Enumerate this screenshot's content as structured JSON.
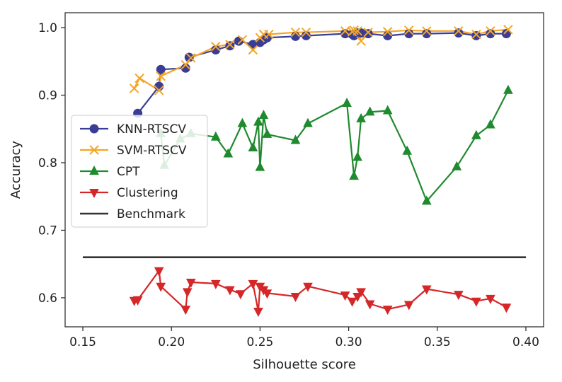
{
  "chart_data": {
    "type": "line",
    "title": "",
    "xlabel": "Silhouette score",
    "ylabel": "Accuracy",
    "xlim": [
      0.14,
      0.41
    ],
    "ylim": [
      0.557,
      1.022
    ],
    "xticks": [
      0.15,
      0.2,
      0.25,
      0.3,
      0.35,
      0.4
    ],
    "xtick_labels": [
      "0.15",
      "0.20",
      "0.25",
      "0.30",
      "0.35",
      "0.40"
    ],
    "yticks": [
      0.6,
      0.7,
      0.8,
      0.9,
      1.0
    ],
    "ytick_labels": [
      "0.6",
      "0.7",
      "0.8",
      "0.9",
      "1.0"
    ],
    "grid": false,
    "legend_position": "center-left",
    "series": [
      {
        "name": "KNN-RTSCV",
        "color": "#3a3d96",
        "marker": "circle",
        "x": [
          0.181,
          0.193,
          0.194,
          0.208,
          0.21,
          0.225,
          0.233,
          0.238,
          0.246,
          0.25,
          0.252,
          0.254,
          0.27,
          0.276,
          0.298,
          0.302,
          0.303,
          0.305,
          0.307,
          0.311,
          0.322,
          0.334,
          0.344,
          0.362,
          0.372,
          0.38,
          0.389
        ],
        "y": [
          0.873,
          0.913,
          0.938,
          0.94,
          0.956,
          0.967,
          0.973,
          0.98,
          0.975,
          0.978,
          0.982,
          0.985,
          0.987,
          0.988,
          0.991,
          0.99,
          0.988,
          0.992,
          0.992,
          0.991,
          0.988,
          0.991,
          0.991,
          0.992,
          0.988,
          0.991,
          0.991
        ]
      },
      {
        "name": "SVM-RTSCV",
        "color": "#f5a623",
        "marker": "x",
        "x": [
          0.179,
          0.182,
          0.193,
          0.194,
          0.208,
          0.211,
          0.225,
          0.233,
          0.24,
          0.246,
          0.25,
          0.252,
          0.255,
          0.27,
          0.276,
          0.298,
          0.302,
          0.303,
          0.305,
          0.307,
          0.311,
          0.322,
          0.334,
          0.344,
          0.362,
          0.372,
          0.38,
          0.39
        ],
        "y": [
          0.91,
          0.925,
          0.907,
          0.928,
          0.945,
          0.955,
          0.972,
          0.975,
          0.982,
          0.967,
          0.985,
          0.99,
          0.99,
          0.993,
          0.993,
          0.995,
          0.994,
          0.996,
          0.995,
          0.98,
          0.993,
          0.994,
          0.996,
          0.995,
          0.995,
          0.99,
          0.995,
          0.997
        ]
      },
      {
        "name": "CPT",
        "color": "#1f8a2e",
        "marker": "triangle-up",
        "x": [
          0.194,
          0.196,
          0.205,
          0.211,
          0.225,
          0.232,
          0.24,
          0.246,
          0.249,
          0.25,
          0.252,
          0.254,
          0.27,
          0.277,
          0.299,
          0.303,
          0.305,
          0.307,
          0.312,
          0.322,
          0.333,
          0.344,
          0.361,
          0.372,
          0.38,
          0.39
        ],
        "y": [
          0.843,
          0.796,
          0.835,
          0.843,
          0.838,
          0.813,
          0.858,
          0.822,
          0.86,
          0.793,
          0.87,
          0.842,
          0.833,
          0.858,
          0.888,
          0.78,
          0.808,
          0.865,
          0.875,
          0.877,
          0.817,
          0.743,
          0.794,
          0.84,
          0.856,
          0.907
        ]
      },
      {
        "name": "Clustering",
        "color": "#d62728",
        "marker": "triangle-down",
        "x": [
          0.179,
          0.181,
          0.193,
          0.194,
          0.208,
          0.209,
          0.211,
          0.225,
          0.233,
          0.239,
          0.246,
          0.249,
          0.25,
          0.252,
          0.254,
          0.27,
          0.277,
          0.298,
          0.302,
          0.305,
          0.307,
          0.312,
          0.322,
          0.334,
          0.344,
          0.362,
          0.372,
          0.38,
          0.389
        ],
        "y": [
          0.596,
          0.597,
          0.64,
          0.617,
          0.583,
          0.609,
          0.623,
          0.621,
          0.612,
          0.606,
          0.621,
          0.58,
          0.617,
          0.612,
          0.607,
          0.602,
          0.617,
          0.604,
          0.595,
          0.602,
          0.609,
          0.591,
          0.583,
          0.59,
          0.613,
          0.605,
          0.595,
          0.599,
          0.586
        ]
      },
      {
        "name": "Benchmark",
        "color": "#333333",
        "marker": "none",
        "x": [
          0.15,
          0.4
        ],
        "y": [
          0.66,
          0.66
        ]
      }
    ]
  }
}
